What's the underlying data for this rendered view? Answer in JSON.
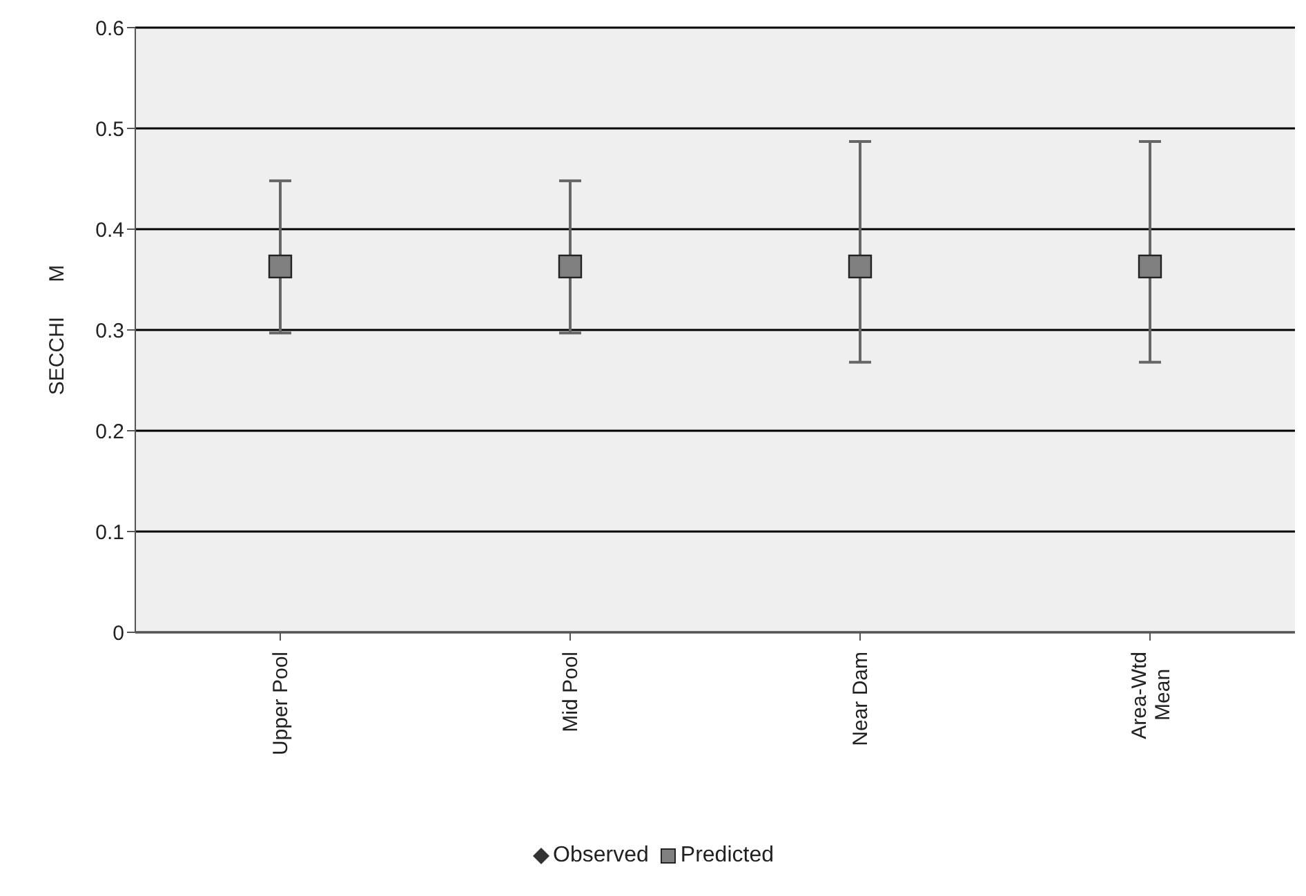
{
  "chart_data": {
    "type": "scatter",
    "ylabel": "SECCHI      M",
    "categories": [
      "Upper Pool",
      "Mid Pool",
      "Near Dam",
      "Area-Wtd Mean"
    ],
    "series": [
      {
        "name": "Observed",
        "color": "#333333",
        "marker": "diamond",
        "values": [
          null,
          null,
          null,
          null
        ]
      },
      {
        "name": "Predicted",
        "color": "#808080",
        "marker": "square",
        "values": [
          0.363,
          0.363,
          0.363,
          0.363
        ],
        "errors": [
          [
            0.297,
            0.448
          ],
          [
            0.297,
            0.448
          ],
          [
            0.268,
            0.487
          ],
          [
            0.268,
            0.487
          ]
        ]
      }
    ],
    "ylim": [
      0,
      0.6
    ],
    "yticks": [
      {
        "value": 0,
        "label": "0"
      },
      0.1,
      0.2,
      0.3,
      0.4,
      0.5,
      0.6
    ],
    "grid": "y",
    "legend": "bottom"
  }
}
